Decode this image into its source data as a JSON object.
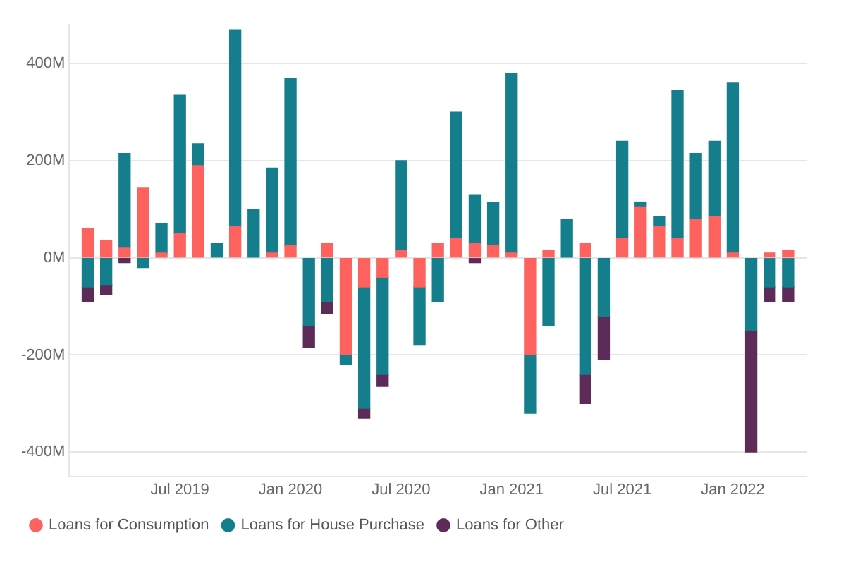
{
  "chart_data": {
    "type": "bar",
    "stacked": true,
    "x": [
      "2019-02",
      "2019-03",
      "2019-04",
      "2019-05",
      "2019-06",
      "2019-07",
      "2019-08",
      "2019-09",
      "2019-10",
      "2019-11",
      "2019-12",
      "2020-01",
      "2020-02",
      "2020-03",
      "2020-04",
      "2020-05",
      "2020-06",
      "2020-07",
      "2020-08",
      "2020-09",
      "2020-10",
      "2020-11",
      "2020-12",
      "2021-01",
      "2021-02",
      "2021-03",
      "2021-04",
      "2021-05",
      "2021-06",
      "2021-07",
      "2021-08",
      "2021-09",
      "2021-10",
      "2021-11",
      "2021-12",
      "2022-01",
      "2022-02",
      "2022-03",
      "2022-04"
    ],
    "series": [
      {
        "name": "Loans for Consumption",
        "color": "#fd625e",
        "values": [
          60,
          35,
          20,
          145,
          10,
          50,
          190,
          null,
          65,
          null,
          10,
          25,
          null,
          30,
          -200,
          -60,
          -40,
          15,
          -60,
          30,
          40,
          30,
          25,
          10,
          -200,
          15,
          null,
          30,
          null,
          40,
          105,
          65,
          40,
          80,
          85,
          10,
          null,
          10,
          15
        ]
      },
      {
        "name": "Loans for House Purchase",
        "color": "#157e8c",
        "values": [
          -60,
          -55,
          195,
          -20,
          60,
          285,
          45,
          30,
          405,
          100,
          175,
          345,
          -140,
          -90,
          -20,
          -250,
          -200,
          185,
          -120,
          -90,
          260,
          100,
          90,
          370,
          -120,
          -140,
          80,
          -240,
          -120,
          200,
          10,
          20,
          305,
          135,
          155,
          350,
          -150,
          -60,
          -60
        ]
      },
      {
        "name": "Loans for Other",
        "color": "#5c2b57",
        "values": [
          -30,
          -20,
          -10,
          null,
          null,
          null,
          null,
          null,
          null,
          null,
          null,
          null,
          -45,
          -25,
          null,
          -20,
          -25,
          null,
          null,
          null,
          null,
          -10,
          null,
          null,
          null,
          null,
          null,
          -60,
          -90,
          null,
          null,
          null,
          null,
          null,
          null,
          null,
          -250,
          -30,
          -30
        ]
      }
    ],
    "xlim": [
      "2019-01",
      "2022-05"
    ],
    "xticks": [
      {
        "value": "2019-07",
        "label": "Jul 2019"
      },
      {
        "value": "2020-01",
        "label": "Jan 2020"
      },
      {
        "value": "2020-07",
        "label": "Jul 2020"
      },
      {
        "value": "2021-01",
        "label": "Jan 2021"
      },
      {
        "value": "2021-07",
        "label": "Jul 2021"
      },
      {
        "value": "2022-01",
        "label": "Jan 2022"
      }
    ],
    "ylim": [
      -450,
      480
    ],
    "yticks": [
      {
        "value": -400,
        "label": "-400M"
      },
      {
        "value": -200,
        "label": "-200M"
      },
      {
        "value": 0,
        "label": "0M"
      },
      {
        "value": 200,
        "label": "200M"
      },
      {
        "value": 400,
        "label": "400M"
      }
    ],
    "grid": "y",
    "legend": "bottom"
  }
}
